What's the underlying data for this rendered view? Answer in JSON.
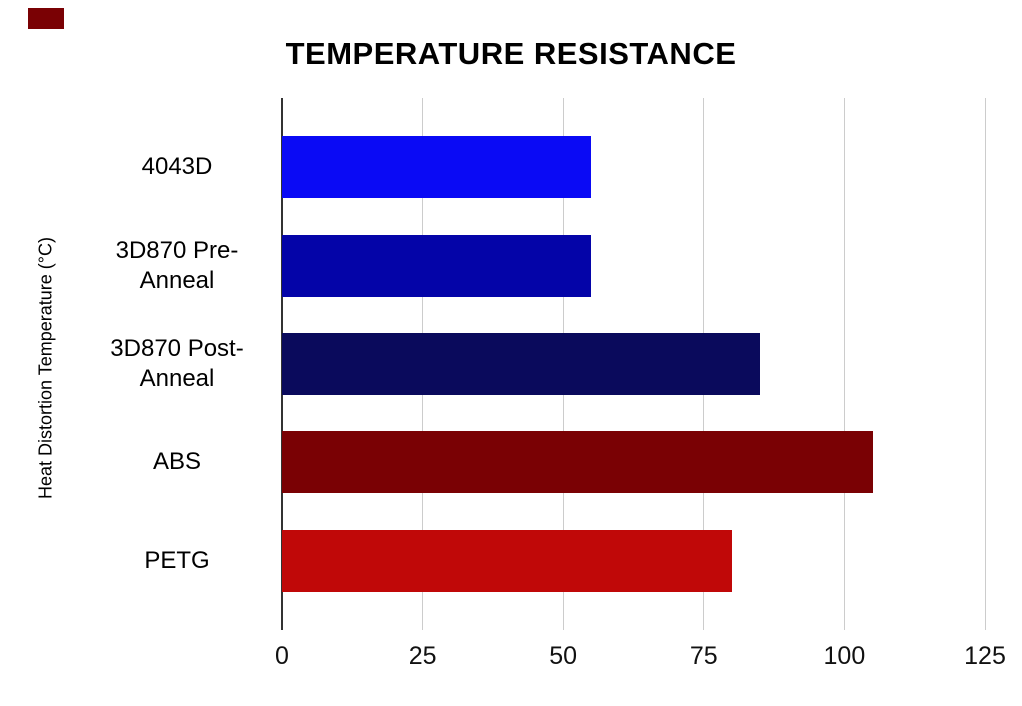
{
  "title": "TEMPERATURE RESISTANCE",
  "decor": {
    "corner_color": "#7a0104"
  },
  "chart_data": {
    "type": "bar",
    "orientation": "horizontal",
    "title": "TEMPERATURE RESISTANCE",
    "xlabel": "",
    "ylabel": "Heat Distortion Temperature (°C)",
    "categories": [
      "4043D",
      "3D870 Pre-Anneal",
      "3D870 Post-Anneal",
      "ABS",
      "PETG"
    ],
    "values": [
      55,
      55,
      85,
      105,
      80
    ],
    "bar_colors": [
      "#0a0af5",
      "#0404a8",
      "#0a0a5c",
      "#7a0104",
      "#c00808"
    ],
    "xlim": [
      0,
      125
    ],
    "xticks": [
      0,
      25,
      50,
      75,
      100,
      125
    ],
    "grid": true,
    "gridline_color": "#cccccc",
    "axis_line_color": "#333333",
    "legend": "none",
    "background": "#ffffff"
  }
}
